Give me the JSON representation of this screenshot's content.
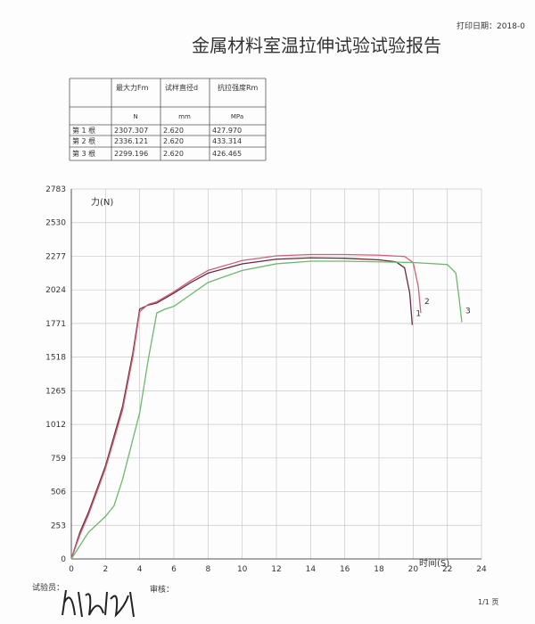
{
  "header": {
    "print_date": "打印日期：2018-0",
    "title": "金属材料室温拉伸试验试验报告"
  },
  "table": {
    "headers": [
      "最大力Fm",
      "试样直径d",
      "抗拉强度Rm"
    ],
    "units": [
      "N",
      "mm",
      "MPa"
    ],
    "rows": [
      [
        "第 1 根",
        "2307.307",
        "2.620",
        "427.970"
      ],
      [
        "第 2 根",
        "2336.121",
        "2.620",
        "433.314"
      ],
      [
        "第 3 根",
        "2299.196",
        "2.620",
        "426.465"
      ]
    ]
  },
  "chart_data": {
    "type": "line",
    "ylabel": "力(N)",
    "xlabel": "时间(S)",
    "xlim": [
      0,
      24
    ],
    "xticks": [
      0,
      2,
      4,
      6,
      8,
      10,
      12,
      14,
      16,
      18,
      20,
      22,
      24
    ],
    "ylim": [
      0,
      2783
    ],
    "yticks": [
      0,
      253,
      506,
      759,
      1012,
      1265,
      1518,
      1771,
      2024,
      2277,
      2530,
      2783
    ],
    "grid": true,
    "series": [
      {
        "name": "1",
        "color": "#6a2a3a",
        "x": [
          0,
          0.5,
          1,
          2,
          3,
          3.6,
          4,
          4.5,
          5,
          6,
          7,
          8,
          10,
          12,
          14,
          16,
          18,
          19,
          19.5,
          19.8,
          19.95
        ],
        "values": [
          0,
          200,
          350,
          700,
          1150,
          1550,
          1880,
          1910,
          1925,
          2000,
          2080,
          2150,
          2220,
          2255,
          2265,
          2262,
          2250,
          2235,
          2190,
          2000,
          1760
        ]
      },
      {
        "name": "2",
        "color": "#d0607a",
        "x": [
          0,
          0.5,
          1,
          2,
          3,
          3.6,
          4,
          4.5,
          5,
          6,
          7,
          8,
          10,
          12,
          14,
          16,
          18,
          19.5,
          20.0,
          20.3,
          20.45
        ],
        "values": [
          0,
          180,
          330,
          680,
          1120,
          1520,
          1860,
          1915,
          1935,
          2010,
          2095,
          2170,
          2245,
          2280,
          2290,
          2290,
          2285,
          2275,
          2230,
          2050,
          1850
        ]
      },
      {
        "name": "3",
        "color": "#6cb86c",
        "x": [
          0,
          1,
          2,
          2.5,
          3,
          4,
          4.5,
          5,
          5.5,
          6,
          7,
          8,
          10,
          12,
          14,
          16,
          18,
          20,
          22,
          22.5,
          22.7,
          22.85
        ],
        "values": [
          0,
          200,
          320,
          400,
          600,
          1100,
          1500,
          1850,
          1880,
          1900,
          1990,
          2080,
          2170,
          2220,
          2240,
          2240,
          2235,
          2230,
          2215,
          2150,
          1950,
          1780
        ]
      }
    ]
  },
  "footer": {
    "tester": "试验员：",
    "reviewer": "审核：",
    "page": "1/1 页"
  }
}
